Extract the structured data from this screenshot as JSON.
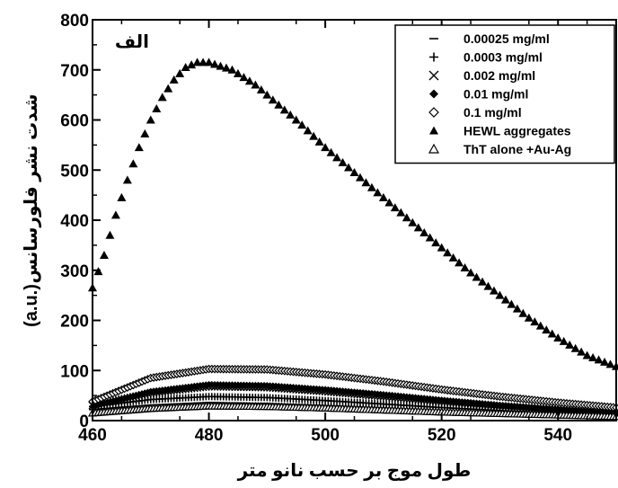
{
  "chart_data": {
    "type": "scatter",
    "panel_label": "الف",
    "xlabel": "طول موج بر حسب نانو متر",
    "ylabel_text": "شدت نشر فلورسانس",
    "ylabel_unit": "(a.u.)",
    "xlim": [
      460,
      550
    ],
    "ylim": [
      0,
      800
    ],
    "x_ticks": [
      460,
      480,
      500,
      520,
      540
    ],
    "x_tick_labels": [
      "460",
      "480",
      "500",
      "520",
      "540"
    ],
    "y_ticks": [
      0,
      100,
      200,
      300,
      400,
      500,
      600,
      700,
      800
    ],
    "y_tick_labels": [
      "0",
      "100",
      "200",
      "300",
      "400",
      "500",
      "600",
      "700",
      "800"
    ],
    "legend_position": "top-right",
    "series": [
      {
        "name": "0.00025 mg/ml",
        "marker": "dash",
        "x": [
          460,
          470,
          480,
          490,
          500,
          510,
          520,
          530,
          540,
          550
        ],
        "y": [
          22,
          31,
          36,
          34,
          30,
          25,
          20,
          16,
          12,
          9
        ]
      },
      {
        "name": "0.0003 mg/ml",
        "marker": "plus",
        "x": [
          460,
          470,
          480,
          490,
          500,
          510,
          520,
          530,
          540,
          550
        ],
        "y": [
          28,
          42,
          48,
          46,
          40,
          33,
          26,
          20,
          15,
          11
        ]
      },
      {
        "name": "0.002 mg/ml",
        "marker": "cross",
        "x": [
          460,
          470,
          480,
          490,
          500,
          510,
          520,
          530,
          540,
          550
        ],
        "y": [
          30,
          55,
          68,
          66,
          58,
          48,
          38,
          29,
          21,
          15
        ]
      },
      {
        "name": "0.01 mg/ml",
        "marker": "diamond-filled",
        "x": [
          460,
          470,
          480,
          490,
          500,
          510,
          520,
          530,
          540,
          550
        ],
        "y": [
          28,
          58,
          72,
          70,
          62,
          52,
          41,
          31,
          23,
          16
        ]
      },
      {
        "name": "0.1 mg/ml",
        "marker": "diamond-open",
        "x": [
          460,
          470,
          480,
          490,
          500,
          510,
          520,
          530,
          540,
          550
        ],
        "y": [
          38,
          85,
          103,
          102,
          92,
          78,
          62,
          48,
          36,
          26
        ]
      },
      {
        "name": "HEWL aggregates",
        "marker": "triangle-filled",
        "x": [
          460,
          462,
          464,
          466,
          468,
          470,
          472,
          474,
          476,
          478,
          480,
          484,
          488,
          492,
          496,
          500,
          505,
          510,
          515,
          520,
          525,
          530,
          535,
          540,
          545,
          550
        ],
        "y": [
          265,
          330,
          410,
          480,
          545,
          600,
          645,
          680,
          705,
          715,
          715,
          700,
          670,
          630,
          590,
          545,
          495,
          445,
          395,
          345,
          295,
          250,
          205,
          165,
          130,
          108
        ]
      },
      {
        "name": "ThT alone +Au-Ag",
        "marker": "triangle-open",
        "x": [
          460,
          470,
          480,
          490,
          500,
          510,
          520,
          530,
          540,
          550
        ],
        "y": [
          15,
          24,
          29,
          28,
          25,
          21,
          17,
          14,
          11,
          8
        ]
      }
    ]
  }
}
